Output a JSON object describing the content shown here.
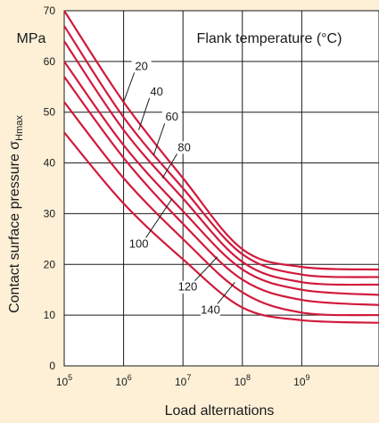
{
  "chart_data": {
    "type": "line",
    "ylabel_main": "Contact surface pressure σ",
    "ylabel_sub": "Hmax",
    "yunit": "MPa",
    "xlabel": "Load alternations",
    "x_scale": "log",
    "xlim": [
      100000,
      20000000000
    ],
    "ylim": [
      0,
      70
    ],
    "y_ticks": [
      0,
      10,
      20,
      30,
      40,
      50,
      60,
      70
    ],
    "x_ticks": [
      {
        "value": 100000,
        "base": "10",
        "exp": "5"
      },
      {
        "value": 1000000,
        "base": "10",
        "exp": "6"
      },
      {
        "value": 10000000,
        "base": "10",
        "exp": "7"
      },
      {
        "value": 100000000,
        "base": "10",
        "exp": "8"
      },
      {
        "value": 1000000000,
        "base": "10",
        "exp": "9"
      }
    ],
    "legend_title": "Flank temperature (°C)",
    "grid": true,
    "line_color": "#d11a3c",
    "series": [
      {
        "name": "20",
        "points": [
          [
            100000,
            70.0
          ],
          [
            1000000,
            52.0
          ],
          [
            10000000,
            37.0
          ],
          [
            100000000,
            23.0
          ],
          [
            1000000000,
            19.5
          ],
          [
            20000000000,
            19.0
          ]
        ]
      },
      {
        "name": "40",
        "points": [
          [
            100000,
            67.0
          ],
          [
            1000000,
            49.0
          ],
          [
            10000000,
            35.0
          ],
          [
            100000000,
            22.0
          ],
          [
            1000000000,
            18.0
          ],
          [
            20000000000,
            17.5
          ]
        ]
      },
      {
        "name": "60",
        "points": [
          [
            100000,
            64.0
          ],
          [
            1000000,
            46.5
          ],
          [
            10000000,
            33.0
          ],
          [
            100000000,
            20.5
          ],
          [
            1000000000,
            16.5
          ],
          [
            20000000000,
            16.0
          ]
        ]
      },
      {
        "name": "80",
        "points": [
          [
            100000,
            60.0
          ],
          [
            1000000,
            43.5
          ],
          [
            10000000,
            30.5
          ],
          [
            100000000,
            19.0
          ],
          [
            1000000000,
            15.0
          ],
          [
            20000000000,
            14.0
          ]
        ]
      },
      {
        "name": "100",
        "points": [
          [
            100000,
            57.0
          ],
          [
            1000000,
            41.0
          ],
          [
            10000000,
            28.0
          ],
          [
            100000000,
            17.0
          ],
          [
            1000000000,
            13.0
          ],
          [
            20000000000,
            12.0
          ]
        ]
      },
      {
        "name": "120",
        "points": [
          [
            100000,
            52.0
          ],
          [
            1000000,
            37.0
          ],
          [
            10000000,
            25.0
          ],
          [
            100000000,
            14.5
          ],
          [
            1000000000,
            10.5
          ],
          [
            20000000000,
            10.0
          ]
        ]
      },
      {
        "name": "140",
        "points": [
          [
            100000,
            46.0
          ],
          [
            1000000,
            32.0
          ],
          [
            10000000,
            21.0
          ],
          [
            100000000,
            11.5
          ],
          [
            1000000000,
            9.0
          ],
          [
            20000000000,
            8.5
          ]
        ]
      }
    ],
    "curve_labels": [
      {
        "name": "20",
        "at": [
          2000000,
          58.5
        ],
        "to": [
          1000000,
          52.0
        ]
      },
      {
        "name": "40",
        "at": [
          3600000,
          53.5
        ],
        "to": [
          1800000,
          46.5
        ]
      },
      {
        "name": "60",
        "at": [
          6500000,
          48.5
        ],
        "to": [
          3200000,
          41.5
        ]
      },
      {
        "name": "80",
        "at": [
          10500000,
          42.5
        ],
        "to": [
          4500000,
          37.0
        ]
      },
      {
        "name": "100",
        "at": [
          1800000,
          23.5
        ],
        "to": [
          6600000,
          33.0
        ]
      },
      {
        "name": "120",
        "at": [
          12000000,
          15.0
        ],
        "to": [
          38000000,
          21.5
        ]
      },
      {
        "name": "140",
        "at": [
          29000000,
          10.5
        ],
        "to": [
          75000000,
          16.5
        ]
      }
    ]
  }
}
